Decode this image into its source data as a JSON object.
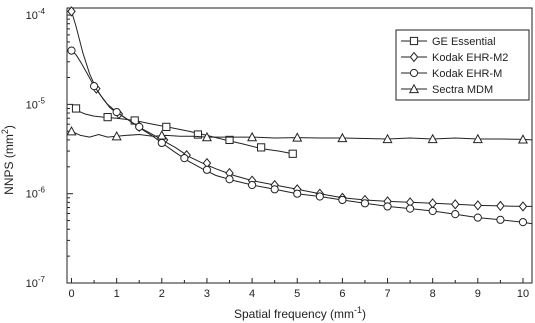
{
  "chart_data": {
    "type": "line",
    "xlabel": "Spatial frequency (mm",
    "xlabel_sup": "-1",
    "xlabel_end": ")",
    "ylabel": "NNPS (mm",
    "ylabel_sup": "2",
    "ylabel_end": ")",
    "xlim": [
      -0.1,
      10.2
    ],
    "ylim": [
      1e-07,
      0.00012
    ],
    "yscale": "log",
    "x_ticks": [
      "0",
      "1",
      "2",
      "3",
      "4",
      "5",
      "6",
      "7",
      "8",
      "9",
      "10"
    ],
    "y_ticks": [
      {
        "base": "10",
        "exp": "-4",
        "value": 0.0001
      },
      {
        "base": "10",
        "exp": "-5",
        "value": 1e-05
      },
      {
        "base": "10",
        "exp": "-6",
        "value": 1e-06
      },
      {
        "base": "10",
        "exp": "-7",
        "value": 1e-07
      }
    ],
    "grid": false,
    "legend_position": "top-right",
    "series": [
      {
        "name": "GE Essential",
        "marker": "square",
        "x": [
          0.05,
          0.1,
          0.2,
          0.3,
          0.5,
          0.7,
          1.0,
          1.4,
          1.8,
          2.2,
          2.6,
          3.0,
          3.4,
          3.8,
          4.2,
          4.6,
          4.9
        ],
        "y": [
          9.5e-06,
          9e-06,
          8.2e-06,
          7.8e-06,
          7.4e-06,
          7.2e-06,
          7e-06,
          6.6e-06,
          6e-06,
          5.5e-06,
          5e-06,
          4.5e-06,
          4e-06,
          3.6e-06,
          3.2e-06,
          3e-06,
          2.8e-06
        ],
        "markers_x": [
          0.1,
          0.8,
          1.4,
          2.1,
          2.8,
          3.5,
          4.2,
          4.9
        ],
        "markers_y": [
          9e-06,
          7.2e-06,
          6.6e-06,
          5.6e-06,
          4.6e-06,
          4e-06,
          3.3e-06,
          2.8e-06
        ]
      },
      {
        "name": "Kodak EHR-M2",
        "marker": "diamond",
        "x": [
          0.0,
          0.1,
          0.25,
          0.4,
          0.55,
          0.7,
          0.85,
          1.0,
          1.2,
          1.4,
          1.6,
          1.8,
          2.0,
          2.3,
          2.6,
          2.9,
          3.2,
          3.6,
          4.0,
          4.5,
          5.0,
          5.5,
          6.0,
          6.5,
          7.0,
          7.5,
          8.0,
          8.5,
          9.0,
          9.5,
          10.0,
          10.2
        ],
        "y": [
          0.00011,
          7.5e-05,
          3.8e-05,
          2.2e-05,
          1.5e-05,
          1.15e-05,
          9.2e-06,
          8e-06,
          7e-06,
          6e-06,
          5.2e-06,
          4.6e-06,
          4e-06,
          3.3e-06,
          2.6e-06,
          2.2e-06,
          1.9e-06,
          1.6e-06,
          1.4e-06,
          1.25e-06,
          1.12e-06,
          1e-06,
          9e-07,
          8.5e-07,
          8.2e-07,
          8e-07,
          7.8e-07,
          7.6e-07,
          7.4e-07,
          7.3e-07,
          7.2e-07,
          7.2e-07
        ],
        "markers_x": [
          0.0,
          0.55,
          1.05,
          1.5,
          2.05,
          2.55,
          3.0,
          3.5,
          4.0,
          4.5,
          5.0,
          5.5,
          6.0,
          6.5,
          7.0,
          7.5,
          8.0,
          8.5,
          9.0,
          9.5,
          10.0
        ],
        "markers_y": [
          0.00011,
          1.5e-05,
          7.8e-06,
          5.6e-06,
          4e-06,
          2.7e-06,
          2.2e-06,
          1.7e-06,
          1.4e-06,
          1.25e-06,
          1.12e-06,
          1e-06,
          9e-07,
          8.5e-07,
          8.2e-07,
          8e-07,
          7.8e-07,
          7.6e-07,
          7.4e-07,
          7.3e-07,
          7.2e-07
        ]
      },
      {
        "name": "Kodak EHR-M",
        "marker": "circle",
        "x": [
          0.0,
          0.1,
          0.2,
          0.35,
          0.5,
          0.65,
          0.8,
          1.0,
          1.2,
          1.4,
          1.6,
          1.8,
          2.0,
          2.3,
          2.6,
          2.9,
          3.2,
          3.6,
          4.0,
          4.5,
          5.0,
          5.5,
          6.0,
          6.5,
          7.0,
          7.5,
          8.0,
          8.5,
          9.0,
          9.5,
          10.0,
          10.2
        ],
        "y": [
          4e-05,
          3.6e-05,
          3e-05,
          2.2e-05,
          1.6e-05,
          1.25e-05,
          1e-05,
          8.2e-06,
          7e-06,
          6e-06,
          5.1e-06,
          4.4e-06,
          3.7e-06,
          2.9e-06,
          2.3e-06,
          1.9e-06,
          1.6e-06,
          1.4e-06,
          1.25e-06,
          1.12e-06,
          1e-06,
          9.3e-07,
          8.5e-07,
          7.8e-07,
          7.2e-07,
          6.8e-07,
          6.4e-07,
          5.9e-07,
          5.4e-07,
          5.1e-07,
          4.8e-07,
          4.6e-07
        ],
        "markers_x": [
          0.0,
          0.5,
          1.0,
          1.5,
          2.0,
          2.5,
          3.0,
          3.5,
          4.0,
          4.5,
          5.0,
          5.5,
          6.0,
          6.5,
          7.0,
          7.5,
          8.0,
          8.5,
          9.0,
          9.5,
          10.0
        ],
        "markers_y": [
          4e-05,
          1.6e-05,
          8.2e-06,
          5.6e-06,
          3.7e-06,
          2.5e-06,
          1.85e-06,
          1.45e-06,
          1.25e-06,
          1.12e-06,
          1e-06,
          9.3e-07,
          8.5e-07,
          7.8e-07,
          7.2e-07,
          6.8e-07,
          6.4e-07,
          5.9e-07,
          5.4e-07,
          5.1e-07,
          4.8e-07
        ]
      },
      {
        "name": "Sectra MDM",
        "marker": "triangle",
        "x": [
          0.0,
          0.2,
          0.4,
          0.6,
          0.8,
          1.0,
          1.2,
          1.5,
          1.8,
          2.1,
          2.4,
          2.7,
          3.0,
          3.5,
          4.0,
          4.5,
          5.0,
          5.5,
          6.0,
          6.5,
          7.0,
          7.5,
          8.0,
          8.5,
          9.0,
          9.5,
          10.0,
          10.2
        ],
        "y": [
          5e-06,
          4.5e-06,
          4.3e-06,
          4.6e-06,
          4.3e-06,
          4.4e-06,
          4.5e-06,
          4.6e-06,
          4.4e-06,
          4.5e-06,
          4.4e-06,
          4.4e-06,
          4.3e-06,
          4.3e-06,
          4.3e-06,
          4.2e-06,
          4.25e-06,
          4.2e-06,
          4.2e-06,
          4.15e-06,
          4.1e-06,
          4.2e-06,
          4.1e-06,
          4.2e-06,
          4.1e-06,
          4.1e-06,
          4.05e-06,
          4e-06
        ],
        "markers_x": [
          0.0,
          1.0,
          2.0,
          3.0,
          4.0,
          5.0,
          6.0,
          7.0,
          8.0,
          9.0,
          10.0
        ],
        "markers_y": [
          5e-06,
          4.4e-06,
          4.5e-06,
          4.3e-06,
          4.3e-06,
          4.25e-06,
          4.2e-06,
          4.1e-06,
          4.1e-06,
          4.1e-06,
          4.05e-06
        ]
      }
    ]
  }
}
